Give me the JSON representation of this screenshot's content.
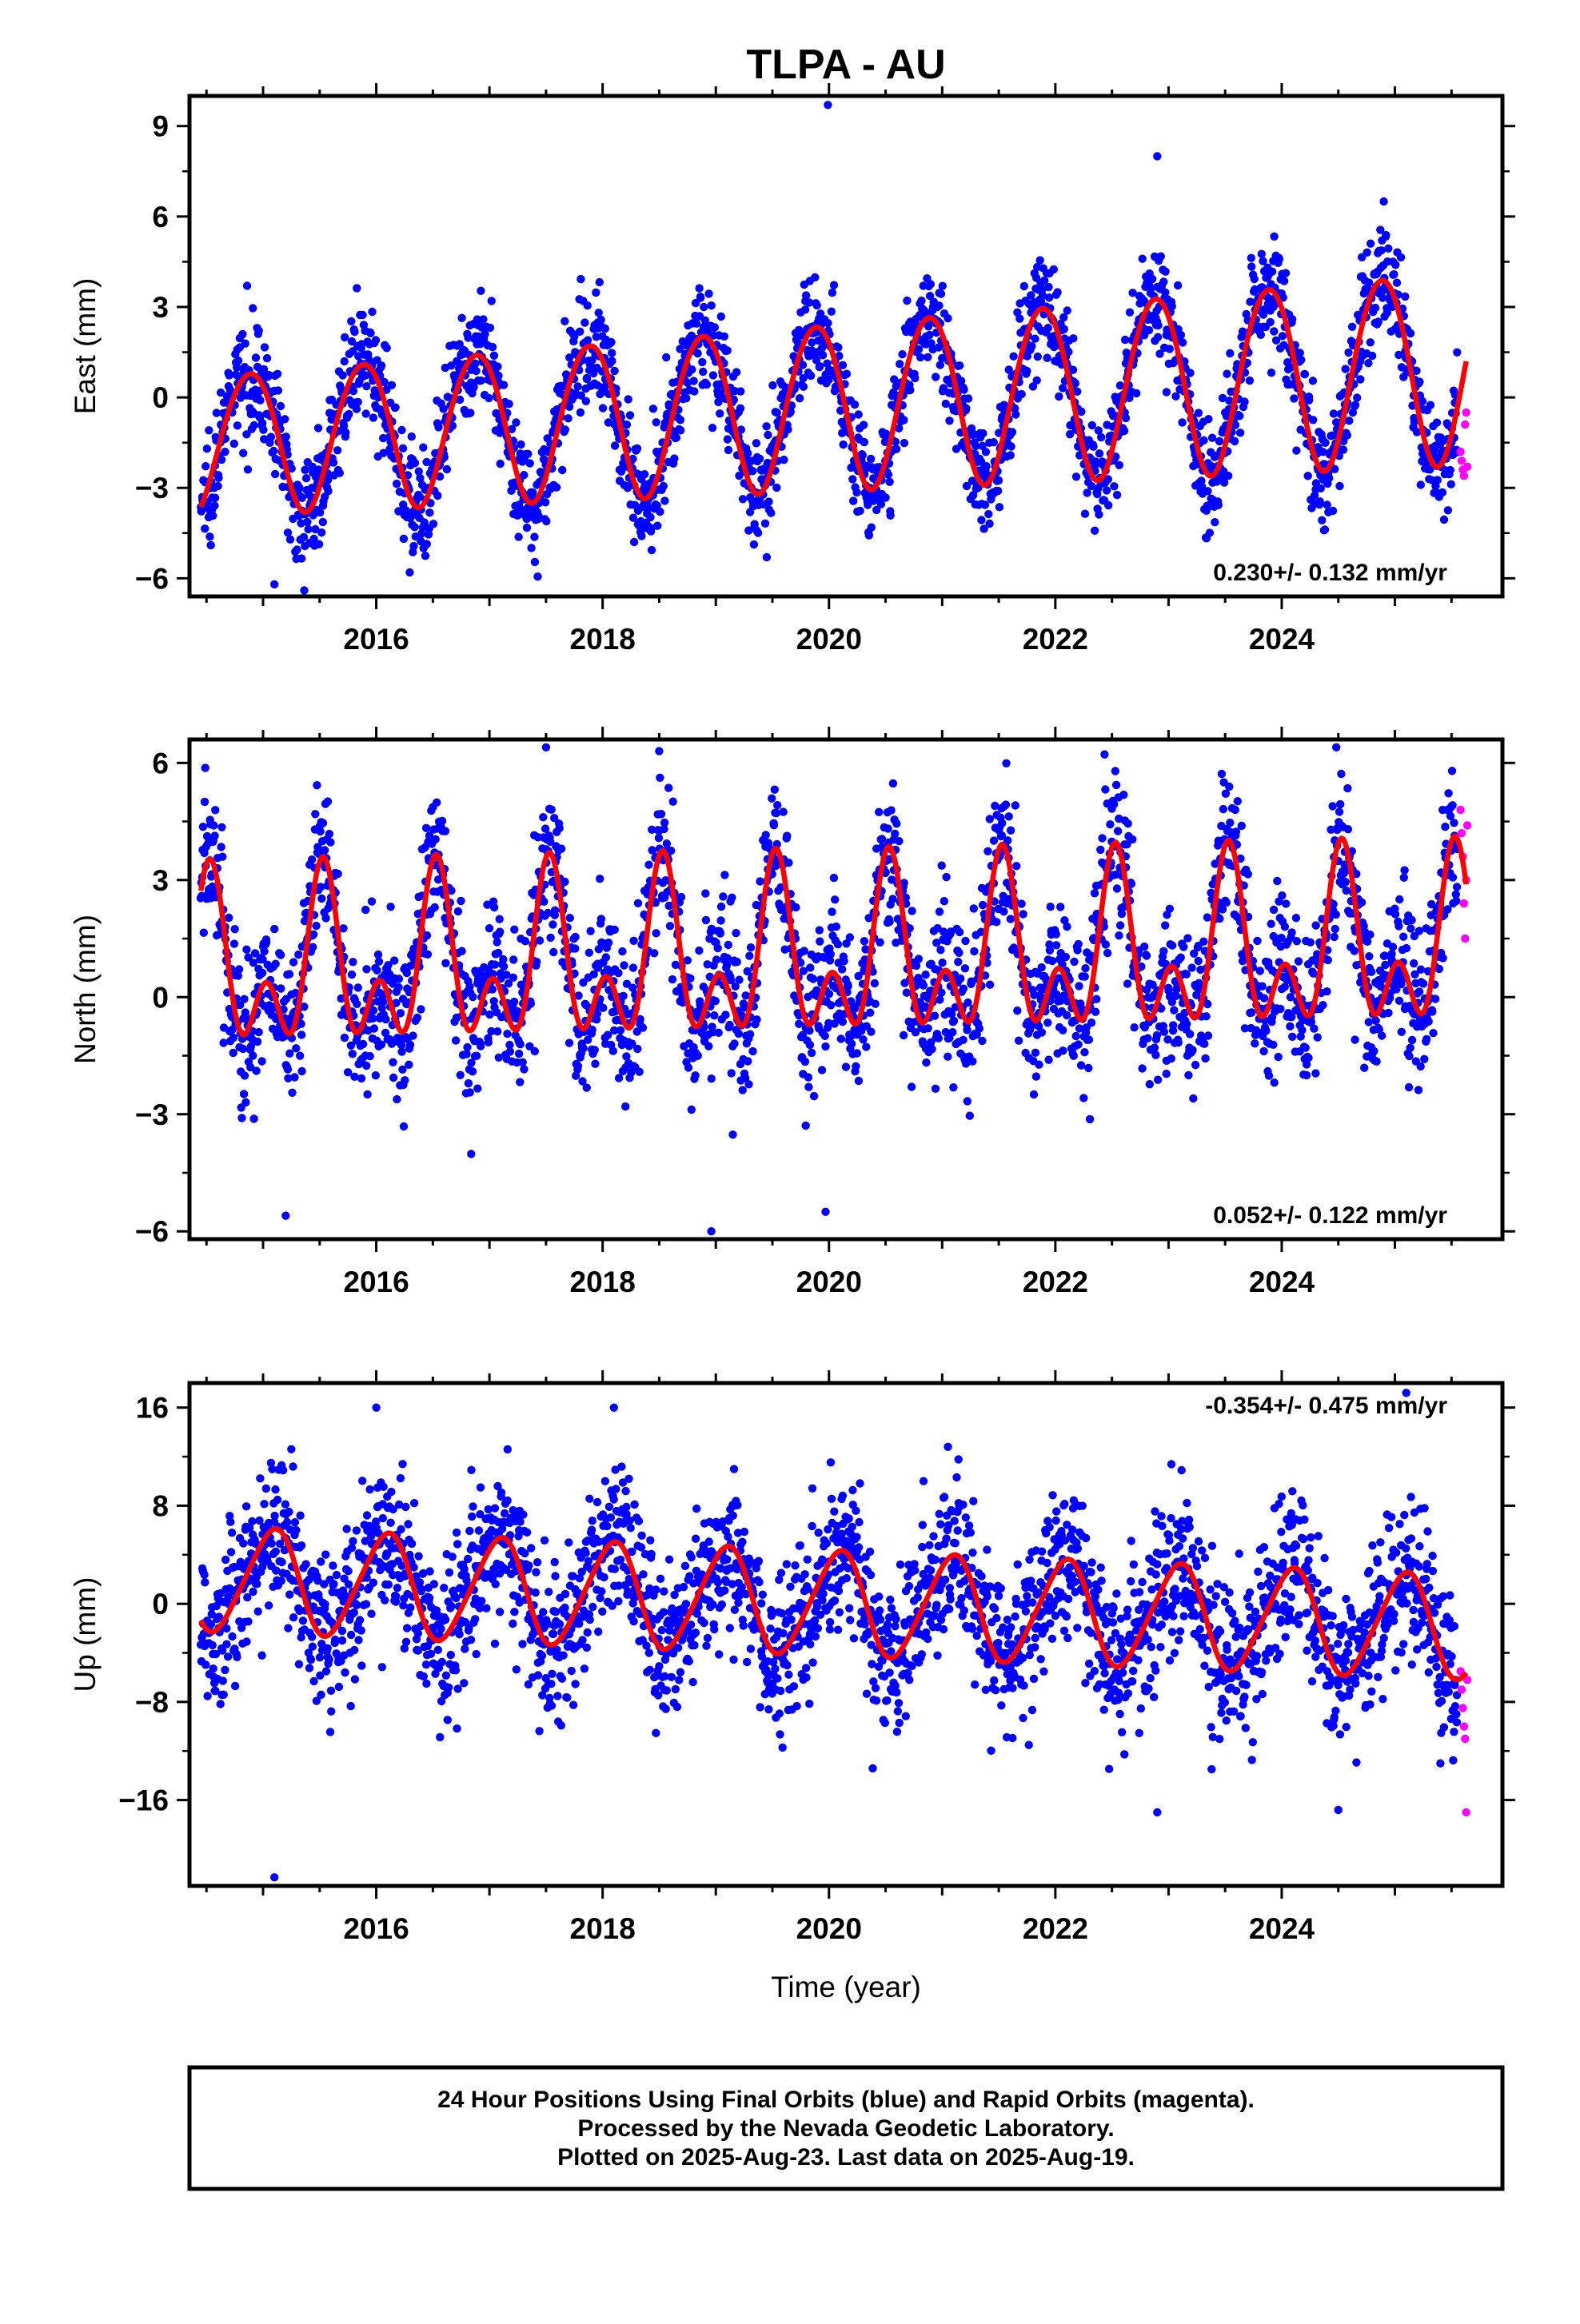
{
  "title": "TLPA - AU",
  "xlabel": "Time (year)",
  "colors": {
    "final": "#0000ff",
    "rapid": "#ff00ff",
    "model": "#ff0000"
  },
  "footer": {
    "line1": "24 Hour Positions Using Final Orbits (blue) and Rapid Orbits (magenta).",
    "line2": "Processed by the Nevada Geodetic Laboratory.",
    "line3": "Plotted on 2025-Aug-23. Last data on 2025-Aug-19."
  },
  "chart_data": [
    {
      "type": "scatter",
      "component": "east",
      "ylabel": "East (mm)",
      "rate_label": "0.230+/- 0.132 mm/yr",
      "xlim": [
        2014.35,
        2025.95
      ],
      "ylim": [
        -6.6,
        10.0
      ],
      "yticks": [
        9,
        6,
        3,
        0,
        -3,
        -6
      ],
      "ytick_labels": [
        "9",
        "6",
        "3",
        "0",
        "−3",
        "−6"
      ],
      "xticks": [
        2016,
        2018,
        2020,
        2022,
        2024
      ],
      "xtick_labels": [
        "2016",
        "2018",
        "2020",
        "2022",
        "2024"
      ],
      "model": {
        "mean0": -1.5,
        "rate": 0.23,
        "annual_amp": 2.3,
        "amp_growth": 0.08,
        "annual_peak": 0.88,
        "semiannual_amp": 0.15,
        "semiannual_phase": 0.1,
        "noise_sd": 0.9
      },
      "final_range": [
        2014.45,
        2025.55
      ],
      "rapid_points": [
        [
          2025.58,
          -1.8
        ],
        [
          2025.59,
          -2.1
        ],
        [
          2025.6,
          -2.4
        ],
        [
          2025.61,
          -2.6
        ],
        [
          2025.62,
          -0.9
        ],
        [
          2025.63,
          -0.5
        ],
        [
          2025.64,
          -2.3
        ]
      ],
      "outliers": [
        [
          2019.99,
          9.7
        ],
        [
          2022.9,
          8.0
        ],
        [
          2015.1,
          -6.2
        ],
        [
          2019.45,
          -5.3
        ]
      ]
    },
    {
      "type": "scatter",
      "component": "north",
      "ylabel": "North (mm)",
      "rate_label": "0.052+/- 0.122 mm/yr",
      "xlim": [
        2014.35,
        2025.95
      ],
      "ylim": [
        -6.2,
        6.6
      ],
      "yticks": [
        6,
        3,
        0,
        -3,
        -6
      ],
      "ytick_labels": [
        "6",
        "3",
        "0",
        "−3",
        "−6"
      ],
      "xticks": [
        2016,
        2018,
        2020,
        2022,
        2024
      ],
      "xtick_labels": [
        "2016",
        "2018",
        "2020",
        "2022",
        "2024"
      ],
      "model": {
        "mean0": 0.6,
        "rate": 0.052,
        "annual_amp": 1.6,
        "amp_growth": 0.0,
        "annual_peak": 0.53,
        "semiannual_amp": 1.35,
        "semiannual_phase": 0.03,
        "noise_sd": 1.0
      },
      "final_range": [
        2014.45,
        2025.55
      ],
      "rapid_points": [
        [
          2025.58,
          4.8
        ],
        [
          2025.59,
          4.2
        ],
        [
          2025.6,
          3.6
        ],
        [
          2025.61,
          2.4
        ],
        [
          2025.62,
          1.5
        ],
        [
          2025.63,
          3.0
        ],
        [
          2025.64,
          4.4
        ]
      ],
      "outliers": [
        [
          2018.96,
          -6.0
        ],
        [
          2015.2,
          -5.6
        ],
        [
          2019.97,
          -5.5
        ],
        [
          2017.5,
          6.4
        ],
        [
          2018.5,
          6.3
        ]
      ]
    },
    {
      "type": "scatter",
      "component": "up",
      "ylabel": "Up (mm)",
      "rate_label": "-0.354+/- 0.475 mm/yr",
      "xlim": [
        2014.35,
        2025.95
      ],
      "ylim": [
        -23.0,
        18.0
      ],
      "yticks": [
        16,
        8,
        0,
        -8,
        -16
      ],
      "ytick_labels": [
        "16",
        "8",
        "0",
        "−8",
        "−16"
      ],
      "xticks": [
        2016,
        2018,
        2020,
        2022,
        2024
      ],
      "xtick_labels": [
        "2016",
        "2018",
        "2020",
        "2022",
        "2024"
      ],
      "model": {
        "mean0": 2.0,
        "rate": -0.354,
        "annual_amp": 4.2,
        "amp_growth": 0.0,
        "annual_peak": 0.08,
        "semiannual_amp": 0.5,
        "semiannual_phase": 0.2,
        "noise_sd": 3.2
      },
      "final_range": [
        2014.45,
        2025.55
      ],
      "rapid_points": [
        [
          2025.58,
          -5.5
        ],
        [
          2025.59,
          -7.0
        ],
        [
          2025.6,
          -8.5
        ],
        [
          2025.61,
          -10.0
        ],
        [
          2025.62,
          -11.0
        ],
        [
          2025.63,
          -17.0
        ],
        [
          2025.64,
          -6.2
        ]
      ],
      "outliers": [
        [
          2015.1,
          -22.3
        ],
        [
          2016.0,
          16.0
        ],
        [
          2018.1,
          16.0
        ],
        [
          2025.1,
          17.2
        ],
        [
          2024.5,
          -16.8
        ],
        [
          2022.9,
          -17.0
        ]
      ]
    }
  ]
}
